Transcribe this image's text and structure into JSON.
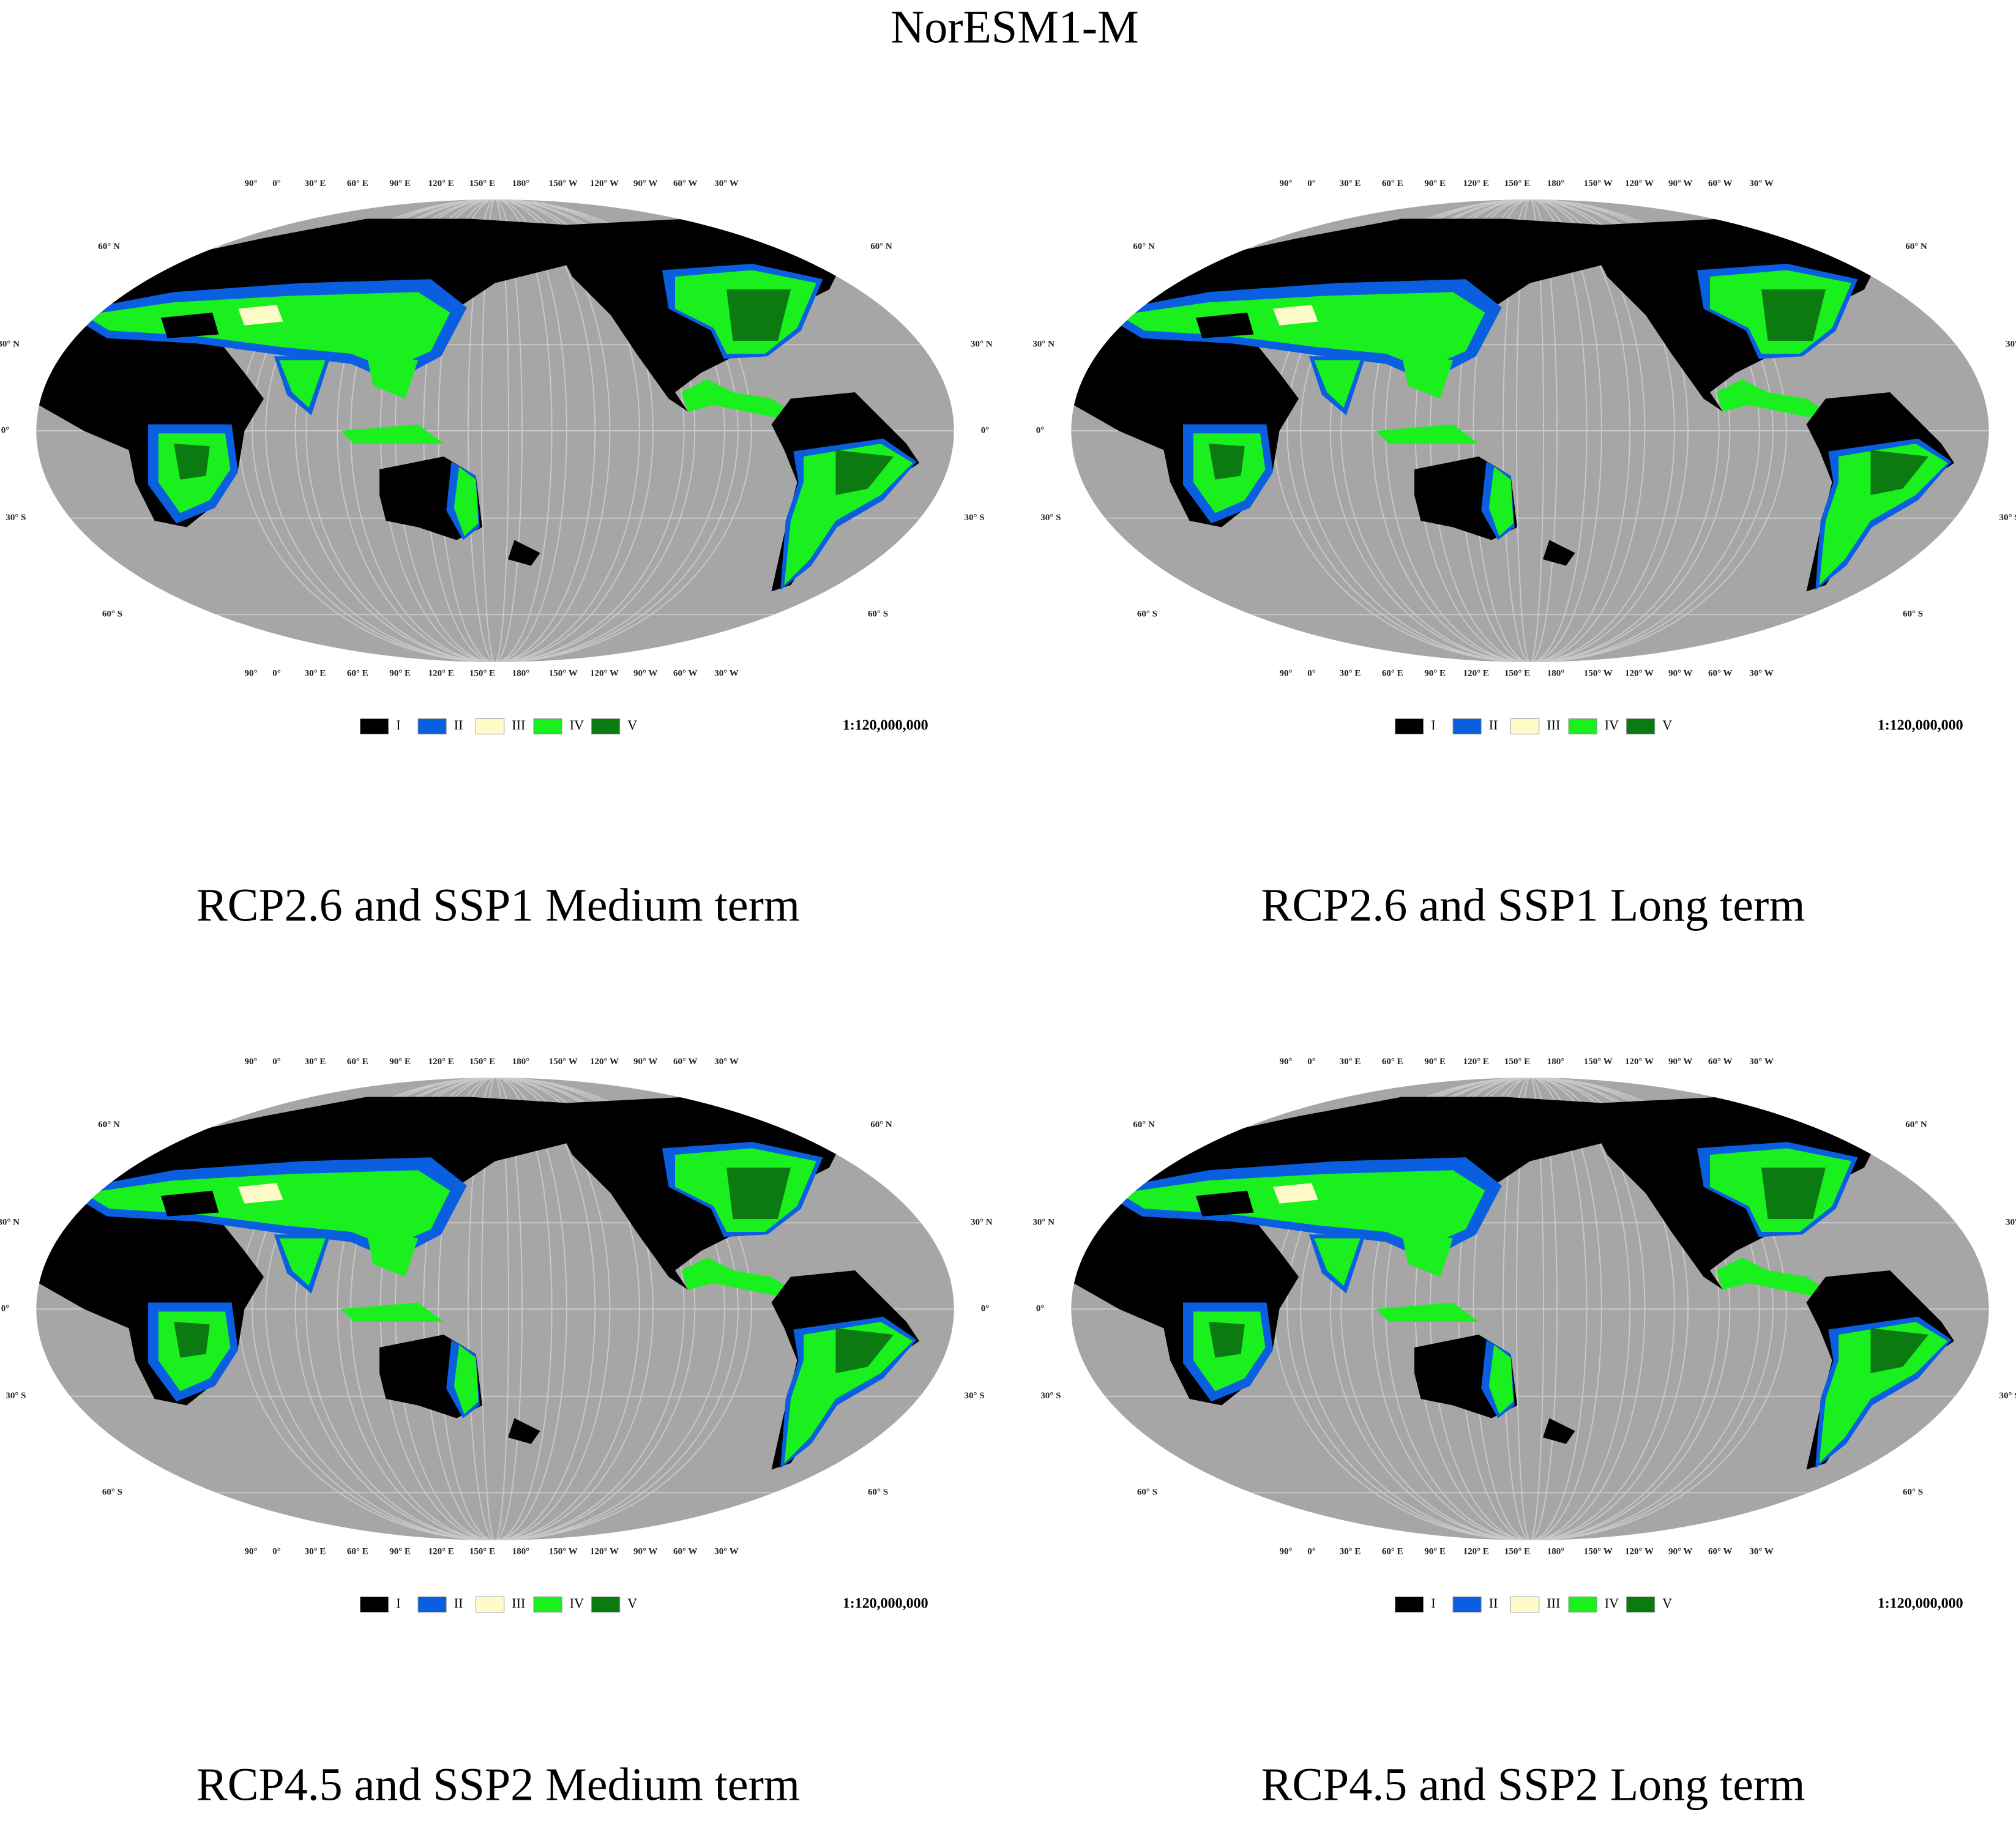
{
  "title": "NorESM1-M",
  "panels": [
    {
      "caption": "RCP2.6 and SSP1 Medium term"
    },
    {
      "caption": "RCP2.6 and SSP1 Long term"
    },
    {
      "caption": "RCP4.5 and SSP2 Medium term"
    },
    {
      "caption": "RCP4.5 and SSP2 Long term"
    }
  ],
  "longitude_labels": [
    "90°",
    "0°",
    "30° E",
    "60° E",
    "90° E",
    "120° E",
    "150° E",
    "180°",
    "150° W",
    "120° W",
    "90° W",
    "60° W",
    "30° W"
  ],
  "latitude_labels": [
    "60° N",
    "30° N",
    "0°",
    "30° S",
    "60° S"
  ],
  "legend": {
    "items": [
      {
        "label": "I",
        "color": "#000000"
      },
      {
        "label": "II",
        "color": "#0a5fe0"
      },
      {
        "label": "III",
        "color": "#fffbc8"
      },
      {
        "label": "IV",
        "color": "#19f01e"
      },
      {
        "label": "V",
        "color": "#0b7a10"
      }
    ]
  },
  "scale": "1:120,000,000"
}
